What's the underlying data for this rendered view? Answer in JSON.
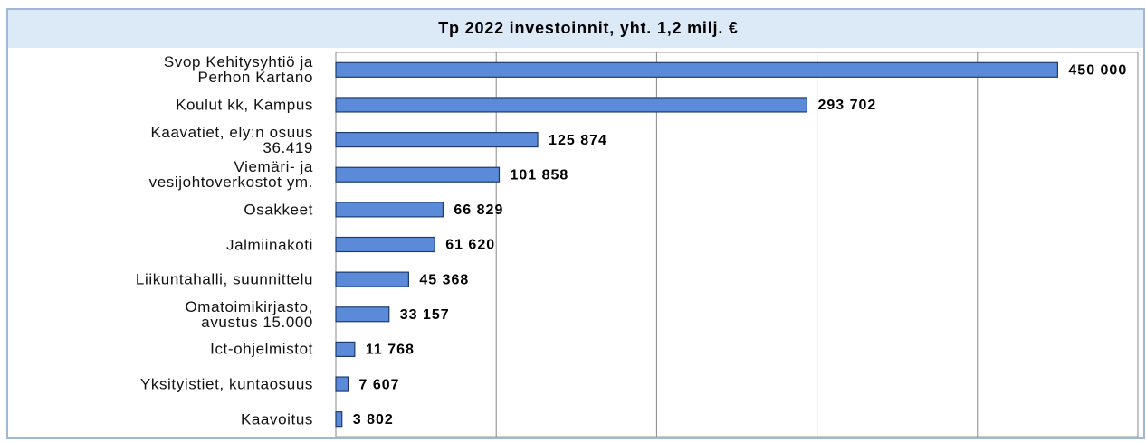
{
  "chart_data": {
    "type": "bar",
    "orientation": "horizontal",
    "title": "Tp 2022 investoinnit, yht. 1,2 milj. €",
    "categories": [
      "Svop Kehitysyhtiö ja\nPerhon Kartano",
      "Koulut kk, Kampus",
      "Kaavatiet, ely:n osuus\n36.419",
      "Viemäri- ja\nvesijohtoverkostot ym.",
      "Osakkeet",
      "Jalmiinakoti",
      "Liikuntahalli, suunnittelu",
      "Omatoimikirjasto,\navustus 15.000",
      "Ict-ohjelmistot",
      "Yksityistiet, kuntaosuus",
      "Kaavoitus"
    ],
    "values": [
      450000,
      293702,
      125874,
      101858,
      66829,
      61620,
      45368,
      33157,
      11768,
      7607,
      3802
    ],
    "value_labels": [
      "450 000",
      "293 702",
      "125 874",
      "101 858",
      "66 829",
      "61 620",
      "45 368",
      "33 157",
      "11 768",
      "7 607",
      "3 802"
    ],
    "color": "#5b8ad8",
    "xlim": [
      0,
      500000
    ],
    "xticks": [
      0,
      100000,
      200000,
      300000,
      400000,
      500000
    ],
    "grid": true
  }
}
